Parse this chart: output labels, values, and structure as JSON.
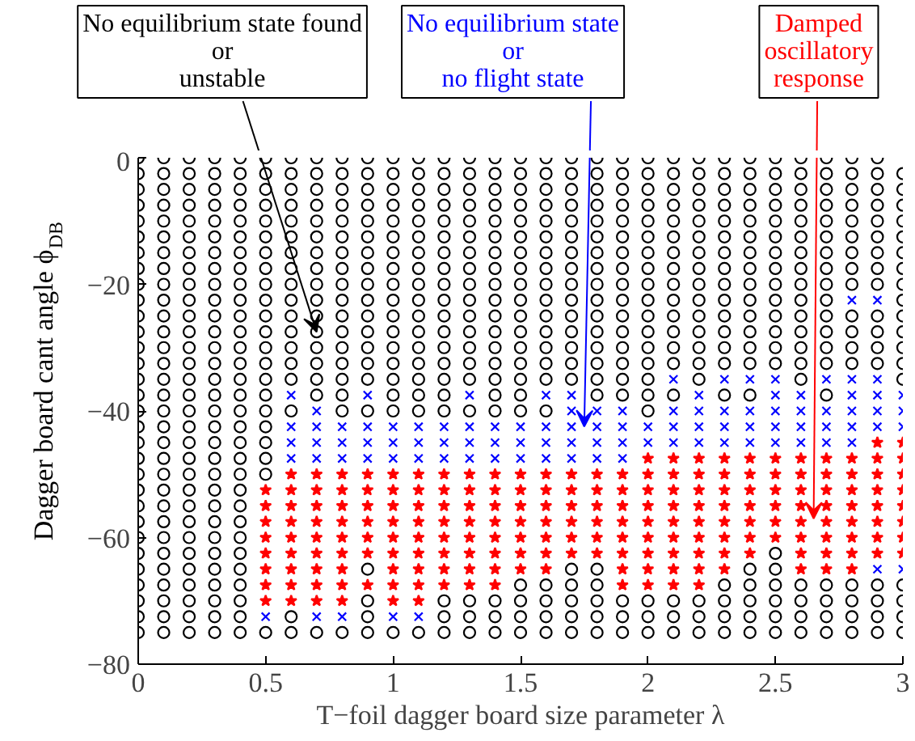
{
  "chart_data": {
    "type": "scatter",
    "xlabel": "T−foil dagger board size parameter λ",
    "ylabel": "Dagger board cant angle  ϕ$_{DB}$",
    "xlim": [
      0,
      3
    ],
    "ylim": [
      -80,
      0
    ],
    "xticks": [
      0,
      0.5,
      1,
      1.5,
      2,
      2.5,
      3
    ],
    "yticks": [
      -80,
      -60,
      -40,
      -20,
      0
    ],
    "grid": false,
    "annotations": [
      "No equilibrium state found\nor\nunstable",
      "No equilibrium state\nor\nno flight state",
      "Damped\noscillatory\nresponse"
    ],
    "series": [
      {
        "marker": "circle",
        "color": "#000000",
        "x": [
          0,
          0.1,
          0.2,
          0.3,
          0.4,
          0.5,
          0.6,
          0.7,
          0.8,
          0.9,
          1,
          1.1,
          1.2,
          1.3,
          1.4,
          1.5,
          1.6,
          1.7,
          1.8,
          1.9,
          2,
          2.1,
          2.2,
          2.3,
          2.4,
          2.5,
          2.6,
          2.7,
          2.8,
          2.9
        ],
        "values": [
          0,
          0,
          0,
          0,
          0,
          0,
          0,
          0,
          0,
          0,
          0,
          0,
          0,
          0,
          0,
          0,
          0,
          0,
          0,
          0,
          0,
          0,
          0,
          0,
          0,
          0,
          0,
          0,
          0,
          0
        ]
      },
      {
        "marker": "circle",
        "color": "#000000",
        "x": [
          0,
          0.1,
          0.2,
          0.3,
          0.4,
          0.5,
          0.6,
          0.7,
          0.8,
          0.9,
          1,
          1.1,
          1.2,
          1.3,
          1.4,
          1.5,
          1.6,
          1.7,
          1.8,
          1.9,
          2,
          2.1,
          2.2,
          2.3,
          2.4,
          2.5,
          2.6,
          2.7,
          2.8,
          2.9,
          3
        ],
        "values": [
          -2.5,
          -2.5,
          -2.5,
          -2.5,
          -2.5,
          -2.5,
          -2.5,
          -2.5,
          -2.5,
          -2.5,
          -2.5,
          -2.5,
          -2.5,
          -2.5,
          -2.5,
          -2.5,
          -2.5,
          -2.5,
          -2.5,
          -2.5,
          -2.5,
          -2.5,
          -2.5,
          -2.5,
          -2.5,
          -2.5,
          -2.5,
          -2.5,
          -2.5,
          -2.5,
          -2.5
        ]
      },
      {
        "marker": "circle",
        "color": "#000000",
        "x": [
          0,
          0.1,
          0.2,
          0.3,
          0.4,
          0.5,
          0.6,
          0.7,
          0.8,
          0.9,
          1,
          1.1,
          1.2,
          1.3,
          1.4,
          1.5,
          1.6,
          1.7,
          1.8,
          1.9,
          2,
          2.1,
          2.2,
          2.3,
          2.4,
          2.5,
          2.6,
          2.7,
          2.8,
          2.9,
          3
        ],
        "values": [
          -5,
          -5,
          -5,
          -5,
          -5,
          -5,
          -5,
          -5,
          -5,
          -5,
          -5,
          -5,
          -5,
          -5,
          -5,
          -5,
          -5,
          -5,
          -5,
          -5,
          -5,
          -5,
          -5,
          -5,
          -5,
          -5,
          -5,
          -5,
          -5,
          -5,
          -5
        ]
      },
      {
        "marker": "circle",
        "color": "#000000",
        "x": [
          0,
          0.1,
          0.2,
          0.3,
          0.4,
          0.5,
          0.6,
          0.7,
          0.8,
          0.9,
          1,
          1.1,
          1.2,
          1.3,
          1.4,
          1.5,
          1.6,
          1.7,
          1.8,
          1.9,
          2,
          2.1,
          2.2,
          2.3,
          2.4,
          2.5,
          2.6,
          2.7,
          2.8,
          2.9,
          3
        ],
        "values": [
          -7.5,
          -7.5,
          -7.5,
          -7.5,
          -7.5,
          -7.5,
          -7.5,
          -7.5,
          -7.5,
          -7.5,
          -7.5,
          -7.5,
          -7.5,
          -7.5,
          -7.5,
          -7.5,
          -7.5,
          -7.5,
          -7.5,
          -7.5,
          -7.5,
          -7.5,
          -7.5,
          -7.5,
          -7.5,
          -7.5,
          -7.5,
          -7.5,
          -7.5,
          -7.5,
          -7.5
        ]
      },
      {
        "marker": "circle",
        "color": "#000000",
        "x": [
          0,
          0.1,
          0.2,
          0.3,
          0.4,
          0.5,
          0.6,
          0.7,
          0.8,
          0.9,
          1,
          1.1,
          1.2,
          1.3,
          1.4,
          1.5,
          1.6,
          1.7,
          1.8,
          1.9,
          2,
          2.1,
          2.2,
          2.3,
          2.4,
          2.5,
          2.6,
          2.7,
          2.8,
          2.9,
          3
        ],
        "values": [
          -10,
          -10,
          -10,
          -10,
          -10,
          -10,
          -10,
          -10,
          -10,
          -10,
          -10,
          -10,
          -10,
          -10,
          -10,
          -10,
          -10,
          -10,
          -10,
          -10,
          -10,
          -10,
          -10,
          -10,
          -10,
          -10,
          -10,
          -10,
          -10,
          -10,
          -10
        ]
      },
      {
        "marker": "circle",
        "color": "#000000",
        "x": [
          0,
          0.1,
          0.2,
          0.3,
          0.4,
          0.5,
          0.6,
          0.7,
          0.8,
          0.9,
          1,
          1.1,
          1.2,
          1.3,
          1.4,
          1.5,
          1.6,
          1.7,
          1.8,
          1.9,
          2,
          2.1,
          2.2,
          2.3,
          2.4,
          2.5,
          2.6,
          2.7,
          2.8,
          2.9,
          3
        ],
        "values": [
          -12.5,
          -12.5,
          -12.5,
          -12.5,
          -12.5,
          -12.5,
          -12.5,
          -12.5,
          -12.5,
          -12.5,
          -12.5,
          -12.5,
          -12.5,
          -12.5,
          -12.5,
          -12.5,
          -12.5,
          -12.5,
          -12.5,
          -12.5,
          -12.5,
          -12.5,
          -12.5,
          -12.5,
          -12.5,
          -12.5,
          -12.5,
          -12.5,
          -12.5,
          -12.5,
          -12.5
        ]
      },
      {
        "marker": "circle",
        "color": "#000000",
        "x": [
          0,
          0.1,
          0.2,
          0.3,
          0.4,
          0.5,
          0.6,
          0.7,
          0.8,
          0.9,
          1,
          1.1,
          1.2,
          1.3,
          1.4,
          1.5,
          1.6,
          1.7,
          1.8,
          1.9,
          2,
          2.1,
          2.2,
          2.3,
          2.4,
          2.5,
          2.6,
          2.7,
          2.8,
          2.9,
          3
        ],
        "values": [
          -15,
          -15,
          -15,
          -15,
          -15,
          -15,
          -15,
          -15,
          -15,
          -15,
          -15,
          -15,
          -15,
          -15,
          -15,
          -15,
          -15,
          -15,
          -15,
          -15,
          -15,
          -15,
          -15,
          -15,
          -15,
          -15,
          -15,
          -15,
          -15,
          -15,
          -15
        ]
      },
      {
        "marker": "circle",
        "color": "#000000",
        "x": [
          0,
          0.1,
          0.2,
          0.3,
          0.4,
          0.5,
          0.6,
          0.7,
          0.8,
          0.9,
          1,
          1.1,
          1.2,
          1.3,
          1.4,
          1.5,
          1.6,
          1.7,
          1.8,
          1.9,
          2,
          2.1,
          2.2,
          2.3,
          2.4,
          2.5,
          2.6,
          2.7,
          2.8,
          2.9,
          3
        ],
        "values": [
          -17.5,
          -17.5,
          -17.5,
          -17.5,
          -17.5,
          -17.5,
          -17.5,
          -17.5,
          -17.5,
          -17.5,
          -17.5,
          -17.5,
          -17.5,
          -17.5,
          -17.5,
          -17.5,
          -17.5,
          -17.5,
          -17.5,
          -17.5,
          -17.5,
          -17.5,
          -17.5,
          -17.5,
          -17.5,
          -17.5,
          -17.5,
          -17.5,
          -17.5,
          -17.5,
          -17.5
        ]
      },
      {
        "marker": "circle",
        "color": "#000000",
        "x": [
          0,
          0.1,
          0.2,
          0.3,
          0.4,
          0.5,
          0.6,
          0.7,
          0.8,
          0.9,
          1,
          1.1,
          1.2,
          1.3,
          1.4,
          1.5,
          1.6,
          1.7,
          1.8,
          1.9,
          2,
          2.1,
          2.2,
          2.3,
          2.4,
          2.5,
          2.6,
          2.7,
          2.8,
          2.9,
          3
        ],
        "values": [
          -20,
          -20,
          -20,
          -20,
          -20,
          -20,
          -20,
          -20,
          -20,
          -20,
          -20,
          -20,
          -20,
          -20,
          -20,
          -20,
          -20,
          -20,
          -20,
          -20,
          -20,
          -20,
          -20,
          -20,
          -20,
          -20,
          -20,
          -20,
          -20,
          -20,
          -20
        ]
      },
      {
        "marker": "circle",
        "color": "#000000",
        "x": [
          0,
          0.1,
          0.2,
          0.3,
          0.4,
          0.5,
          0.6,
          0.7,
          0.8,
          0.9,
          1,
          1.1,
          1.2,
          1.3,
          1.4,
          1.5,
          1.6,
          1.7,
          1.8,
          1.9,
          2,
          2.1,
          2.2,
          2.3,
          2.4,
          2.5,
          2.6,
          2.7,
          3
        ],
        "values": [
          -22.5,
          -22.5,
          -22.5,
          -22.5,
          -22.5,
          -22.5,
          -22.5,
          -22.5,
          -22.5,
          -22.5,
          -22.5,
          -22.5,
          -22.5,
          -22.5,
          -22.5,
          -22.5,
          -22.5,
          -22.5,
          -22.5,
          -22.5,
          -22.5,
          -22.5,
          -22.5,
          -22.5,
          -22.5,
          -22.5,
          -22.5,
          -22.5,
          -22.5
        ]
      },
      {
        "marker": "cross",
        "color": "#0000ff",
        "x": [
          2.8,
          2.9
        ],
        "values": [
          -22.5,
          -22.5
        ]
      },
      {
        "marker": "circle",
        "color": "#000000",
        "x": [
          0,
          0.1,
          0.2,
          0.3,
          0.4,
          0.5,
          0.6,
          0.7,
          0.8,
          0.9,
          1,
          1.1,
          1.2,
          1.3,
          1.4,
          1.5,
          1.6,
          1.7,
          1.8,
          1.9,
          2,
          2.1,
          2.2,
          2.3,
          2.4,
          2.5,
          2.6,
          2.7,
          2.8,
          2.9,
          3
        ],
        "values": [
          -25,
          -25,
          -25,
          -25,
          -25,
          -25,
          -25,
          -25,
          -25,
          -25,
          -25,
          -25,
          -25,
          -25,
          -25,
          -25,
          -25,
          -25,
          -25,
          -25,
          -25,
          -25,
          -25,
          -25,
          -25,
          -25,
          -25,
          -25,
          -25,
          -25,
          -25
        ]
      },
      {
        "marker": "circle",
        "color": "#000000",
        "x": [
          0,
          0.1,
          0.2,
          0.3,
          0.4,
          0.5,
          0.6,
          0.7,
          0.8,
          0.9,
          1,
          1.1,
          1.2,
          1.3,
          1.4,
          1.5,
          1.6,
          1.7,
          1.8,
          1.9,
          2,
          2.1,
          2.2,
          2.3,
          2.4,
          2.5,
          2.6,
          2.7,
          2.8,
          2.9,
          3
        ],
        "values": [
          -27.5,
          -27.5,
          -27.5,
          -27.5,
          -27.5,
          -27.5,
          -27.5,
          -27.5,
          -27.5,
          -27.5,
          -27.5,
          -27.5,
          -27.5,
          -27.5,
          -27.5,
          -27.5,
          -27.5,
          -27.5,
          -27.5,
          -27.5,
          -27.5,
          -27.5,
          -27.5,
          -27.5,
          -27.5,
          -27.5,
          -27.5,
          -27.5,
          -27.5,
          -27.5,
          -27.5
        ]
      },
      {
        "marker": "circle",
        "color": "#000000",
        "x": [
          0,
          0.1,
          0.2,
          0.3,
          0.4,
          0.5,
          0.6,
          0.7,
          0.8,
          0.9,
          1,
          1.1,
          1.2,
          1.3,
          1.4,
          1.5,
          1.6,
          1.7,
          1.8,
          1.9,
          2,
          2.1,
          2.2,
          2.3,
          2.4,
          2.5,
          2.6,
          2.7,
          2.8,
          2.9,
          3
        ],
        "values": [
          -30,
          -30,
          -30,
          -30,
          -30,
          -30,
          -30,
          -30,
          -30,
          -30,
          -30,
          -30,
          -30,
          -30,
          -30,
          -30,
          -30,
          -30,
          -30,
          -30,
          -30,
          -30,
          -30,
          -30,
          -30,
          -30,
          -30,
          -30,
          -30,
          -30,
          -30
        ]
      },
      {
        "marker": "circle",
        "color": "#000000",
        "x": [
          0,
          0.1,
          0.2,
          0.3,
          0.4,
          0.5,
          0.6,
          0.7,
          0.8,
          0.9,
          1,
          1.1,
          1.2,
          1.3,
          1.4,
          1.5,
          1.6,
          1.7,
          1.8,
          1.9,
          2,
          2.1,
          2.2,
          2.3,
          2.4,
          2.5,
          2.6,
          2.7,
          2.8,
          2.9,
          3
        ],
        "values": [
          -32.5,
          -32.5,
          -32.5,
          -32.5,
          -32.5,
          -32.5,
          -32.5,
          -32.5,
          -32.5,
          -32.5,
          -32.5,
          -32.5,
          -32.5,
          -32.5,
          -32.5,
          -32.5,
          -32.5,
          -32.5,
          -32.5,
          -32.5,
          -32.5,
          -32.5,
          -32.5,
          -32.5,
          -32.5,
          -32.5,
          -32.5,
          -32.5,
          -32.5,
          -32.5,
          -32.5
        ]
      },
      {
        "marker": "circle",
        "color": "#000000",
        "x": [
          0,
          0.1,
          0.2,
          0.3,
          0.4,
          0.5,
          0.6,
          0.7,
          0.8,
          0.9,
          1,
          1.1,
          1.2,
          1.3,
          1.4,
          1.5,
          1.6,
          1.7,
          1.8,
          1.9,
          2,
          2.2,
          2.6,
          3
        ],
        "values": [
          -35,
          -35,
          -35,
          -35,
          -35,
          -35,
          -35,
          -35,
          -35,
          -35,
          -35,
          -35,
          -35,
          -35,
          -35,
          -35,
          -35,
          -35,
          -35,
          -35,
          -35,
          -35,
          -35,
          -35
        ]
      },
      {
        "marker": "cross",
        "color": "#0000ff",
        "x": [
          2.1,
          2.3,
          2.4,
          2.5,
          2.7,
          2.8,
          2.9
        ],
        "values": [
          -35,
          -35,
          -35,
          -35,
          -35,
          -35,
          -35
        ]
      },
      {
        "marker": "circle",
        "color": "#000000",
        "x": [
          0,
          0.1,
          0.2,
          0.3,
          0.4,
          0.5,
          0.7,
          0.8,
          1,
          1.1,
          1.2,
          1.4,
          1.5,
          1.8,
          1.9,
          2,
          2.1,
          2.3,
          2.4,
          2.7
        ],
        "values": [
          -37.5,
          -37.5,
          -37.5,
          -37.5,
          -37.5,
          -37.5,
          -37.5,
          -37.5,
          -37.5,
          -37.5,
          -37.5,
          -37.5,
          -37.5,
          -37.5,
          -37.5,
          -37.5,
          -37.5,
          -37.5,
          -37.5,
          -37.5
        ]
      },
      {
        "marker": "cross",
        "color": "#0000ff",
        "x": [
          0.6,
          0.9,
          1.3,
          1.6,
          1.7,
          2.2,
          2.5,
          2.6,
          2.8,
          2.9,
          3
        ],
        "values": [
          -37.5,
          -37.5,
          -37.5,
          -37.5,
          -37.5,
          -37.5,
          -37.5,
          -37.5,
          -37.5,
          -37.5,
          -37.5
        ]
      },
      {
        "marker": "circle",
        "color": "#000000",
        "x": [
          0,
          0.1,
          0.2,
          0.3,
          0.4,
          0.5,
          0.6,
          0.8,
          0.9,
          1,
          1.1,
          1.2,
          1.3,
          1.4,
          1.5,
          1.6,
          2
        ],
        "values": [
          -40,
          -40,
          -40,
          -40,
          -40,
          -40,
          -40,
          -40,
          -40,
          -40,
          -40,
          -40,
          -40,
          -40,
          -40,
          -40,
          -40
        ]
      },
      {
        "marker": "cross",
        "color": "#0000ff",
        "x": [
          0.7,
          1.7,
          1.8,
          1.9,
          2.1,
          2.2,
          2.3,
          2.4,
          2.5,
          2.6,
          2.7,
          2.8,
          2.9,
          3
        ],
        "values": [
          -40,
          -40,
          -40,
          -40,
          -40,
          -40,
          -40,
          -40,
          -40,
          -40,
          -40,
          -40,
          -40,
          -40
        ]
      },
      {
        "marker": "circle",
        "color": "#000000",
        "x": [
          0,
          0.1,
          0.2,
          0.3,
          0.4,
          0.5
        ],
        "values": [
          -42.5,
          -42.5,
          -42.5,
          -42.5,
          -42.5,
          -42.5
        ]
      },
      {
        "marker": "cross",
        "color": "#0000ff",
        "x": [
          0.6,
          0.7,
          0.8,
          0.9,
          1,
          1.1,
          1.2,
          1.3,
          1.4,
          1.5,
          1.6,
          1.7,
          1.8,
          1.9,
          2,
          2.1,
          2.2,
          2.3,
          2.4,
          2.5,
          2.6,
          2.7,
          2.8,
          2.9,
          3
        ],
        "values": [
          -42.5,
          -42.5,
          -42.5,
          -42.5,
          -42.5,
          -42.5,
          -42.5,
          -42.5,
          -42.5,
          -42.5,
          -42.5,
          -42.5,
          -42.5,
          -42.5,
          -42.5,
          -42.5,
          -42.5,
          -42.5,
          -42.5,
          -42.5,
          -42.5,
          -42.5,
          -42.5,
          -42.5,
          -42.5
        ]
      },
      {
        "marker": "circle",
        "color": "#000000",
        "x": [
          0,
          0.1,
          0.2,
          0.3,
          0.4,
          0.5
        ],
        "values": [
          -45,
          -45,
          -45,
          -45,
          -45,
          -45
        ]
      },
      {
        "marker": "cross",
        "color": "#0000ff",
        "x": [
          0.6,
          0.7,
          0.8,
          0.9,
          1,
          1.1,
          1.2,
          1.3,
          1.4,
          1.5,
          1.6,
          1.7,
          1.8,
          1.9,
          2,
          2.1,
          2.2,
          2.3,
          2.4,
          2.5,
          2.6,
          2.7,
          2.8
        ],
        "values": [
          -45,
          -45,
          -45,
          -45,
          -45,
          -45,
          -45,
          -45,
          -45,
          -45,
          -45,
          -45,
          -45,
          -45,
          -45,
          -45,
          -45,
          -45,
          -45,
          -45,
          -45,
          -45,
          -45
        ]
      },
      {
        "marker": "star",
        "color": "#ff0000",
        "x": [
          2.9,
          3
        ],
        "values": [
          -45,
          -45
        ]
      },
      {
        "marker": "circle",
        "color": "#000000",
        "x": [
          0,
          0.1,
          0.2,
          0.3,
          0.4,
          0.5
        ],
        "values": [
          -47.5,
          -47.5,
          -47.5,
          -47.5,
          -47.5,
          -47.5
        ]
      },
      {
        "marker": "cross",
        "color": "#0000ff",
        "x": [
          0.6,
          0.7,
          0.8,
          0.9,
          1,
          1.1,
          1.2,
          1.3,
          1.4,
          1.5,
          1.6,
          1.7,
          1.8,
          1.9
        ],
        "values": [
          -47.5,
          -47.5,
          -47.5,
          -47.5,
          -47.5,
          -47.5,
          -47.5,
          -47.5,
          -47.5,
          -47.5,
          -47.5,
          -47.5,
          -47.5,
          -47.5
        ]
      },
      {
        "marker": "star",
        "color": "#ff0000",
        "x": [
          2,
          2.1,
          2.2,
          2.3,
          2.4,
          2.5,
          2.6,
          2.7,
          2.8,
          2.9,
          3
        ],
        "values": [
          -47.5,
          -47.5,
          -47.5,
          -47.5,
          -47.5,
          -47.5,
          -47.5,
          -47.5,
          -47.5,
          -47.5,
          -47.5
        ]
      },
      {
        "marker": "circle",
        "color": "#000000",
        "x": [
          0,
          0.1,
          0.2,
          0.3,
          0.4,
          0.5
        ],
        "values": [
          -50,
          -50,
          -50,
          -50,
          -50,
          -50
        ]
      },
      {
        "marker": "star",
        "color": "#ff0000",
        "x": [
          0.6,
          0.7,
          0.8,
          0.9,
          1,
          1.1,
          1.2,
          1.3,
          1.4,
          1.5,
          1.6,
          1.7,
          1.8,
          1.9,
          2,
          2.1,
          2.2,
          2.3,
          2.4,
          2.5,
          2.6,
          2.7,
          2.8,
          2.9,
          3
        ],
        "values": [
          -50,
          -50,
          -50,
          -50,
          -50,
          -50,
          -50,
          -50,
          -50,
          -50,
          -50,
          -50,
          -50,
          -50,
          -50,
          -50,
          -50,
          -50,
          -50,
          -50,
          -50,
          -50,
          -50,
          -50,
          -50
        ]
      },
      {
        "marker": "circle",
        "color": "#000000",
        "x": [
          0,
          0.1,
          0.2,
          0.3,
          0.4
        ],
        "values": [
          -52.5,
          -52.5,
          -52.5,
          -52.5,
          -52.5
        ]
      },
      {
        "marker": "star",
        "color": "#ff0000",
        "x": [
          0.5,
          0.6,
          0.7,
          0.8,
          0.9,
          1,
          1.1,
          1.2,
          1.3,
          1.4,
          1.5,
          1.6,
          1.7,
          1.8,
          1.9,
          2,
          2.1,
          2.2,
          2.3,
          2.4,
          2.5,
          2.6,
          2.7,
          2.8,
          2.9,
          3
        ],
        "values": [
          -52.5,
          -52.5,
          -52.5,
          -52.5,
          -52.5,
          -52.5,
          -52.5,
          -52.5,
          -52.5,
          -52.5,
          -52.5,
          -52.5,
          -52.5,
          -52.5,
          -52.5,
          -52.5,
          -52.5,
          -52.5,
          -52.5,
          -52.5,
          -52.5,
          -52.5,
          -52.5,
          -52.5,
          -52.5,
          -52.5
        ]
      },
      {
        "marker": "circle",
        "color": "#000000",
        "x": [
          0,
          0.1,
          0.2,
          0.3,
          0.4
        ],
        "values": [
          -55,
          -55,
          -55,
          -55,
          -55
        ]
      },
      {
        "marker": "star",
        "color": "#ff0000",
        "x": [
          0.5,
          0.6,
          0.7,
          0.8,
          0.9,
          1,
          1.1,
          1.2,
          1.3,
          1.4,
          1.5,
          1.6,
          1.7,
          1.8,
          1.9,
          2,
          2.1,
          2.2,
          2.3,
          2.4,
          2.5,
          2.6,
          2.7,
          2.8,
          2.9,
          3
        ],
        "values": [
          -55,
          -55,
          -55,
          -55,
          -55,
          -55,
          -55,
          -55,
          -55,
          -55,
          -55,
          -55,
          -55,
          -55,
          -55,
          -55,
          -55,
          -55,
          -55,
          -55,
          -55,
          -55,
          -55,
          -55,
          -55,
          -55
        ]
      },
      {
        "marker": "circle",
        "color": "#000000",
        "x": [
          0,
          0.1,
          0.2,
          0.3,
          0.4
        ],
        "values": [
          -57.5,
          -57.5,
          -57.5,
          -57.5,
          -57.5
        ]
      },
      {
        "marker": "star",
        "color": "#ff0000",
        "x": [
          0.5,
          0.6,
          0.7,
          0.8,
          0.9,
          1,
          1.1,
          1.2,
          1.3,
          1.4,
          1.5,
          1.6,
          1.7,
          1.8,
          1.9,
          2,
          2.1,
          2.2,
          2.3,
          2.4,
          2.5,
          2.6,
          2.7,
          2.8,
          2.9,
          3
        ],
        "values": [
          -57.5,
          -57.5,
          -57.5,
          -57.5,
          -57.5,
          -57.5,
          -57.5,
          -57.5,
          -57.5,
          -57.5,
          -57.5,
          -57.5,
          -57.5,
          -57.5,
          -57.5,
          -57.5,
          -57.5,
          -57.5,
          -57.5,
          -57.5,
          -57.5,
          -57.5,
          -57.5,
          -57.5,
          -57.5,
          -57.5
        ]
      },
      {
        "marker": "circle",
        "color": "#000000",
        "x": [
          0,
          0.1,
          0.2,
          0.3,
          0.4
        ],
        "values": [
          -60,
          -60,
          -60,
          -60,
          -60
        ]
      },
      {
        "marker": "star",
        "color": "#ff0000",
        "x": [
          0.5,
          0.6,
          0.7,
          0.8,
          0.9,
          1,
          1.1,
          1.2,
          1.3,
          1.4,
          1.5,
          1.6,
          1.7,
          1.8,
          1.9,
          2,
          2.1,
          2.2,
          2.3,
          2.4,
          2.5,
          2.6,
          2.7,
          2.8,
          2.9,
          3
        ],
        "values": [
          -60,
          -60,
          -60,
          -60,
          -60,
          -60,
          -60,
          -60,
          -60,
          -60,
          -60,
          -60,
          -60,
          -60,
          -60,
          -60,
          -60,
          -60,
          -60,
          -60,
          -60,
          -60,
          -60,
          -60,
          -60,
          -60
        ]
      },
      {
        "marker": "circle",
        "color": "#000000",
        "x": [
          0,
          0.1,
          0.2,
          0.3,
          0.4,
          2.5
        ],
        "values": [
          -62.5,
          -62.5,
          -62.5,
          -62.5,
          -62.5,
          -62.5
        ]
      },
      {
        "marker": "star",
        "color": "#ff0000",
        "x": [
          0.5,
          0.6,
          0.7,
          0.8,
          0.9,
          1,
          1.1,
          1.2,
          1.3,
          1.4,
          1.5,
          1.6,
          1.7,
          1.8,
          1.9,
          2,
          2.1,
          2.2,
          2.3,
          2.4,
          2.6,
          2.7,
          2.8,
          2.9,
          3
        ],
        "values": [
          -62.5,
          -62.5,
          -62.5,
          -62.5,
          -62.5,
          -62.5,
          -62.5,
          -62.5,
          -62.5,
          -62.5,
          -62.5,
          -62.5,
          -62.5,
          -62.5,
          -62.5,
          -62.5,
          -62.5,
          -62.5,
          -62.5,
          -62.5,
          -62.5,
          -62.5,
          -62.5,
          -62.5,
          -62.5
        ]
      },
      {
        "marker": "circle",
        "color": "#000000",
        "x": [
          0,
          0.1,
          0.2,
          0.3,
          0.4,
          0.9,
          1.7,
          1.8,
          2.4,
          2.5
        ],
        "values": [
          -65,
          -65,
          -65,
          -65,
          -65,
          -65,
          -65,
          -65,
          -65,
          -65
        ]
      },
      {
        "marker": "star",
        "color": "#ff0000",
        "x": [
          0.5,
          0.6,
          0.7,
          0.8,
          1,
          1.1,
          1.2,
          1.3,
          1.4,
          1.5,
          1.6,
          1.9,
          2,
          2.1,
          2.2,
          2.3,
          2.6,
          2.7,
          2.8
        ],
        "values": [
          -65,
          -65,
          -65,
          -65,
          -65,
          -65,
          -65,
          -65,
          -65,
          -65,
          -65,
          -65,
          -65,
          -65,
          -65,
          -65,
          -65,
          -65,
          -65
        ]
      },
      {
        "marker": "cross",
        "color": "#0000ff",
        "x": [
          2.9,
          3
        ],
        "values": [
          -65,
          -65
        ]
      },
      {
        "marker": "circle",
        "color": "#000000",
        "x": [
          0,
          0.1,
          0.2,
          0.3,
          0.4,
          1.5,
          1.6,
          1.7,
          1.8,
          2.3,
          2.4,
          2.5,
          2.6,
          2.7,
          2.8,
          2.9,
          3
        ],
        "values": [
          -67.5,
          -67.5,
          -67.5,
          -67.5,
          -67.5,
          -67.5,
          -67.5,
          -67.5,
          -67.5,
          -67.5,
          -67.5,
          -67.5,
          -67.5,
          -67.5,
          -67.5,
          -67.5,
          -67.5
        ]
      },
      {
        "marker": "star",
        "color": "#ff0000",
        "x": [
          0.5,
          0.6,
          0.7,
          0.8,
          0.9,
          1,
          1.1,
          1.2,
          1.3,
          1.4,
          1.9,
          2,
          2.1,
          2.2
        ],
        "values": [
          -67.5,
          -67.5,
          -67.5,
          -67.5,
          -67.5,
          -67.5,
          -67.5,
          -67.5,
          -67.5,
          -67.5,
          -67.5,
          -67.5,
          -67.5,
          -67.5
        ]
      },
      {
        "marker": "circle",
        "color": "#000000",
        "x": [
          0,
          0.1,
          0.2,
          0.3,
          0.4,
          0.9,
          1.2,
          1.3,
          1.4,
          1.5,
          1.6,
          1.7,
          1.8,
          1.9,
          2,
          2.1,
          2.2,
          2.3,
          2.4,
          2.5,
          2.6,
          2.7,
          2.8,
          2.9,
          3
        ],
        "values": [
          -70,
          -70,
          -70,
          -70,
          -70,
          -70,
          -70,
          -70,
          -70,
          -70,
          -70,
          -70,
          -70,
          -70,
          -70,
          -70,
          -70,
          -70,
          -70,
          -70,
          -70,
          -70,
          -70,
          -70,
          -70
        ]
      },
      {
        "marker": "star",
        "color": "#ff0000",
        "x": [
          0.5,
          0.6,
          0.7,
          0.8,
          1,
          1.1
        ],
        "values": [
          -70,
          -70,
          -70,
          -70,
          -70,
          -70
        ]
      },
      {
        "marker": "circle",
        "color": "#000000",
        "x": [
          0,
          0.1,
          0.2,
          0.3,
          0.4,
          0.6,
          0.9,
          1.2,
          1.3,
          1.4,
          1.5,
          1.6,
          1.7,
          1.8,
          1.9,
          2,
          2.1,
          2.2,
          2.3,
          2.4,
          2.5,
          2.6,
          2.7,
          2.8,
          2.9,
          3
        ],
        "values": [
          -72.5,
          -72.5,
          -72.5,
          -72.5,
          -72.5,
          -72.5,
          -72.5,
          -72.5,
          -72.5,
          -72.5,
          -72.5,
          -72.5,
          -72.5,
          -72.5,
          -72.5,
          -72.5,
          -72.5,
          -72.5,
          -72.5,
          -72.5,
          -72.5,
          -72.5,
          -72.5,
          -72.5,
          -72.5,
          -72.5
        ]
      },
      {
        "marker": "cross",
        "color": "#0000ff",
        "x": [
          0.5,
          0.7,
          0.8,
          1,
          1.1
        ],
        "values": [
          -72.5,
          -72.5,
          -72.5,
          -72.5,
          -72.5
        ]
      },
      {
        "marker": "circle",
        "color": "#000000",
        "x": [
          0,
          0.1,
          0.2,
          0.3,
          0.4,
          0.5,
          0.6,
          0.7,
          0.8,
          0.9,
          1,
          1.1,
          1.2,
          1.3,
          1.4,
          1.5,
          1.6,
          1.7,
          1.8,
          1.9,
          2,
          2.1,
          2.2,
          2.3,
          2.4,
          2.5,
          2.6,
          2.7,
          2.8,
          2.9,
          3
        ],
        "values": [
          -75,
          -75,
          -75,
          -75,
          -75,
          -75,
          -75,
          -75,
          -75,
          -75,
          -75,
          -75,
          -75,
          -75,
          -75,
          -75,
          -75,
          -75,
          -75,
          -75,
          -75,
          -75,
          -75,
          -75,
          -75,
          -75,
          -75,
          -75,
          -75,
          -75,
          -75
        ]
      }
    ]
  }
}
